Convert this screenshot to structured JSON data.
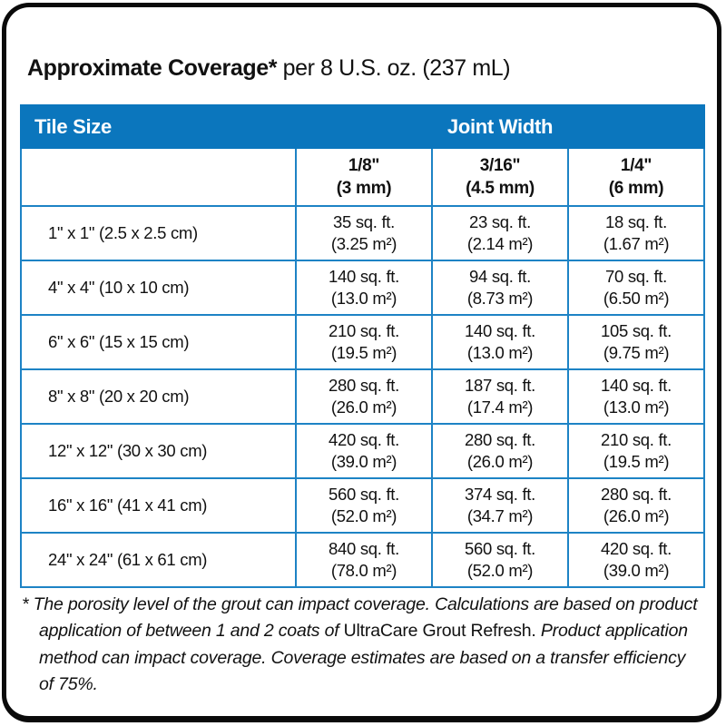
{
  "title": {
    "bold": "Approximate Coverage*",
    "regular": " per 8 U.S. oz. (237 mL)"
  },
  "colors": {
    "header_blue": "#0b76bd",
    "grid_blue": "#1d83c5",
    "frame_black": "#0a0a0a"
  },
  "table": {
    "header": {
      "tile_size": "Tile Size",
      "joint_width": "Joint Width"
    },
    "joint_columns": [
      {
        "inch": "1/8\"",
        "mm": "(3 mm)"
      },
      {
        "inch": "3/16\"",
        "mm": "(4.5 mm)"
      },
      {
        "inch": "1/4\"",
        "mm": "(6 mm)"
      }
    ],
    "rows": [
      {
        "tile": "1\" x 1\" (2.5 x 2.5 cm)",
        "cols": [
          {
            "sqft": "35 sq. ft.",
            "m2": "(3.25 m²)"
          },
          {
            "sqft": "23 sq. ft.",
            "m2": "(2.14 m²)"
          },
          {
            "sqft": "18 sq. ft.",
            "m2": "(1.67 m²)"
          }
        ]
      },
      {
        "tile": "4\" x 4\" (10 x 10 cm)",
        "cols": [
          {
            "sqft": "140 sq. ft.",
            "m2": "(13.0 m²)"
          },
          {
            "sqft": "94 sq. ft.",
            "m2": "(8.73 m²)"
          },
          {
            "sqft": "70 sq. ft.",
            "m2": "(6.50 m²)"
          }
        ]
      },
      {
        "tile": "6\" x 6\" (15 x 15 cm)",
        "cols": [
          {
            "sqft": "210 sq. ft.",
            "m2": "(19.5 m²)"
          },
          {
            "sqft": "140 sq. ft.",
            "m2": "(13.0 m²)"
          },
          {
            "sqft": "105 sq. ft.",
            "m2": "(9.75 m²)"
          }
        ]
      },
      {
        "tile": "8\" x 8\" (20 x 20 cm)",
        "cols": [
          {
            "sqft": "280 sq. ft.",
            "m2": "(26.0 m²)"
          },
          {
            "sqft": "187 sq. ft.",
            "m2": "(17.4 m²)"
          },
          {
            "sqft": "140 sq. ft.",
            "m2": "(13.0 m²)"
          }
        ]
      },
      {
        "tile": "12\" x 12\" (30 x 30 cm)",
        "cols": [
          {
            "sqft": "420 sq. ft.",
            "m2": "(39.0 m²)"
          },
          {
            "sqft": "280 sq. ft.",
            "m2": "(26.0 m²)"
          },
          {
            "sqft": "210 sq. ft.",
            "m2": "(19.5 m²)"
          }
        ]
      },
      {
        "tile": "16\" x 16\" (41 x 41 cm)",
        "cols": [
          {
            "sqft": "560 sq. ft.",
            "m2": "(52.0 m²)"
          },
          {
            "sqft": "374 sq. ft.",
            "m2": "(34.7 m²)"
          },
          {
            "sqft": "280 sq. ft.",
            "m2": "(26.0 m²)"
          }
        ]
      },
      {
        "tile": "24\" x 24\" (61 x 61 cm)",
        "cols": [
          {
            "sqft": "840 sq. ft.",
            "m2": "(78.0 m²)"
          },
          {
            "sqft": "560 sq. ft.",
            "m2": "(52.0 m²)"
          },
          {
            "sqft": "420 sq. ft.",
            "m2": "(39.0 m²)"
          }
        ]
      }
    ]
  },
  "footnote": {
    "part1": "* The porosity level of the grout can impact coverage. Calculations are based on product application of between 1 and 2 coats of ",
    "product": "UltraCare Grout Refresh.",
    "part2": " Product application method can impact coverage. Coverage estimates are based on a transfer efficiency of 75%."
  }
}
